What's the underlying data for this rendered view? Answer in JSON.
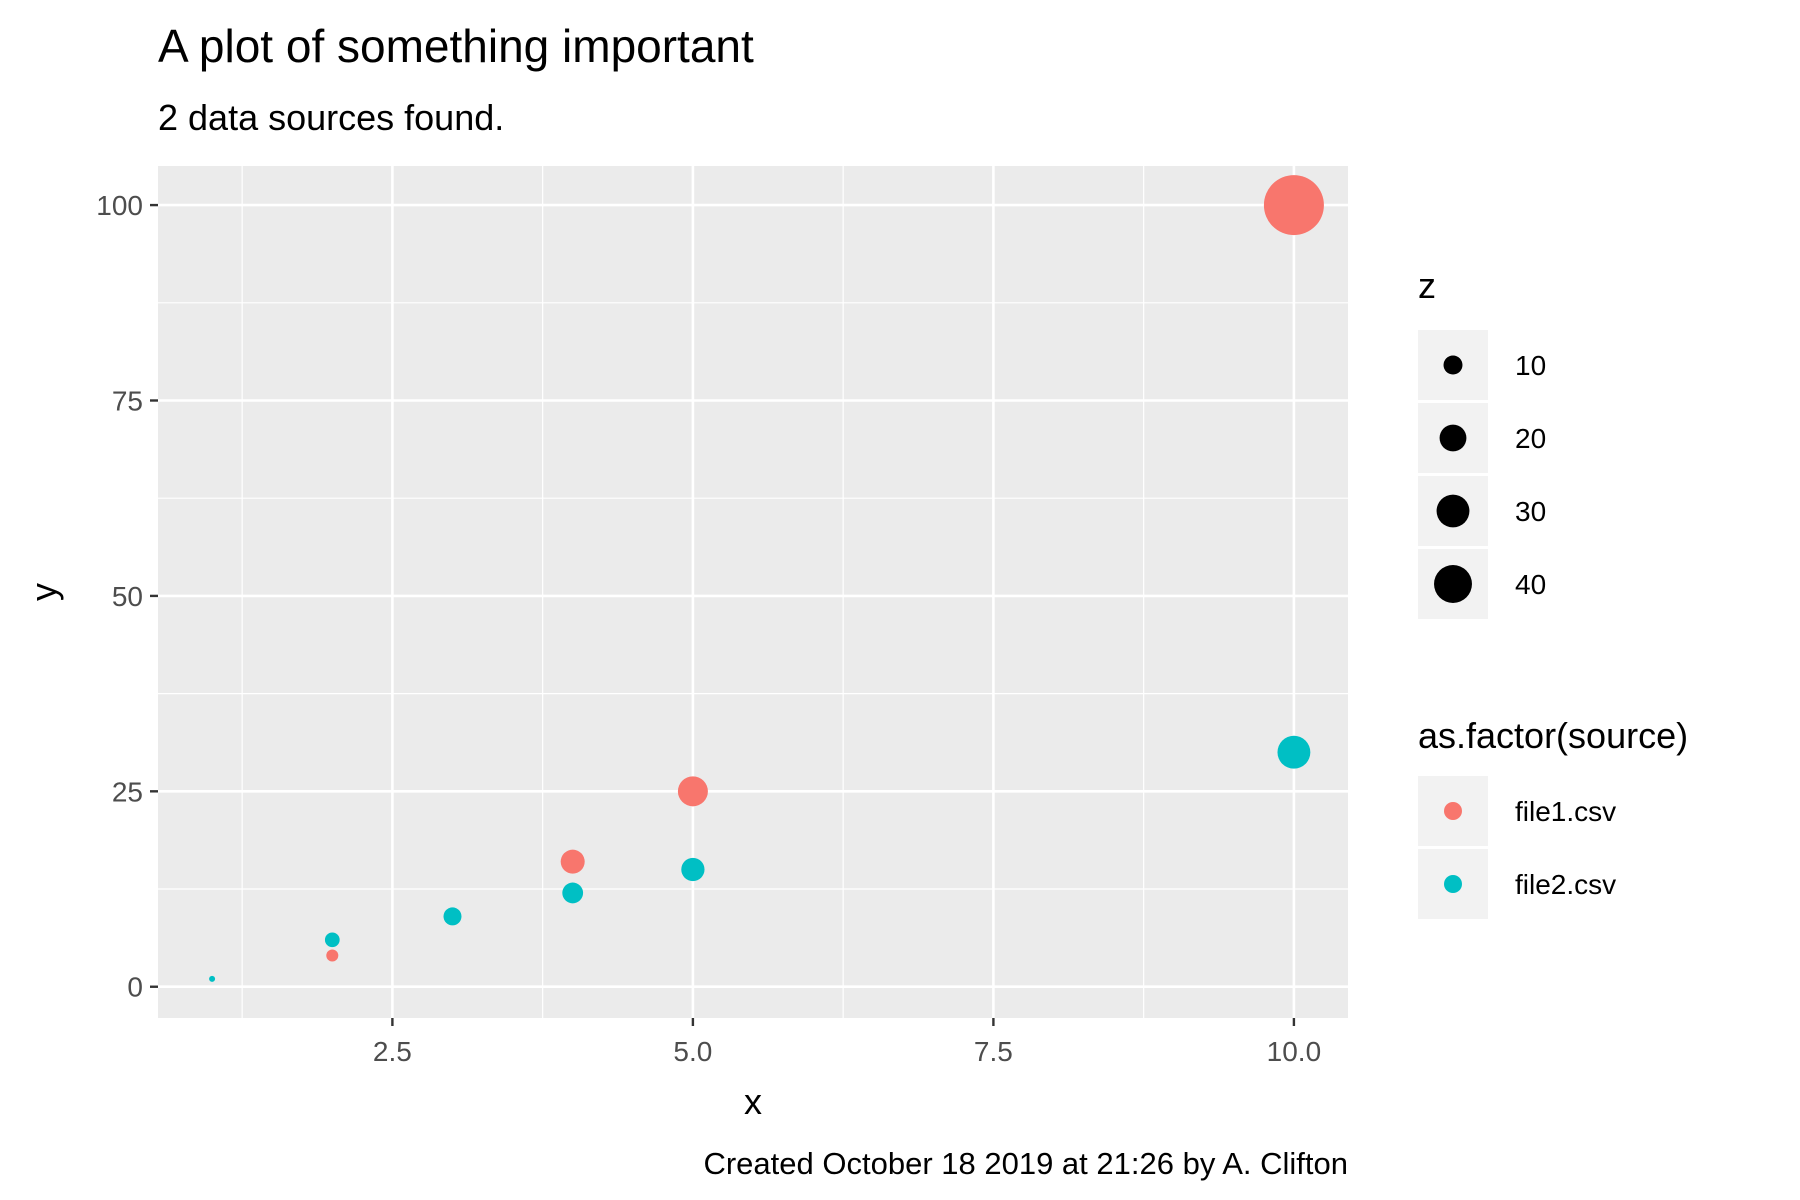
{
  "chart_data": {
    "type": "scatter",
    "title": "A plot of something important",
    "subtitle": "2 data sources found.",
    "caption": "Created October 18 2019 at 21:26 by A. Clifton",
    "xlabel": "x",
    "ylabel": "y",
    "xlim": [
      0.55,
      10.45
    ],
    "ylim": [
      -4,
      105
    ],
    "x_ticks": [
      2.5,
      5.0,
      7.5,
      10.0
    ],
    "x_tick_labels": [
      "2.5",
      "5.0",
      "7.5",
      "10.0"
    ],
    "y_ticks": [
      0,
      25,
      50,
      75,
      100
    ],
    "y_tick_labels": [
      "0",
      "25",
      "50",
      "75",
      "100"
    ],
    "grid": true,
    "size_legend": {
      "title": "z",
      "values": [
        10,
        20,
        30,
        40
      ],
      "labels": [
        "10",
        "20",
        "30",
        "40"
      ]
    },
    "color_legend": {
      "title": "as.factor(source)"
    },
    "series": [
      {
        "name": "file1.csv",
        "color": "#F8766D",
        "points": [
          {
            "x": 2,
            "y": 4,
            "z": 4
          },
          {
            "x": 4,
            "y": 16,
            "z": 16
          },
          {
            "x": 5,
            "y": 25,
            "z": 25
          },
          {
            "x": 10,
            "y": 100,
            "z": 100
          }
        ]
      },
      {
        "name": "file2.csv",
        "color": "#00BFC4",
        "points": [
          {
            "x": 1,
            "y": 1,
            "z": 1
          },
          {
            "x": 2,
            "y": 6,
            "z": 6
          },
          {
            "x": 3,
            "y": 9,
            "z": 9
          },
          {
            "x": 4,
            "y": 12,
            "z": 12
          },
          {
            "x": 5,
            "y": 15,
            "z": 15
          },
          {
            "x": 10,
            "y": 30,
            "z": 30
          }
        ]
      }
    ]
  }
}
